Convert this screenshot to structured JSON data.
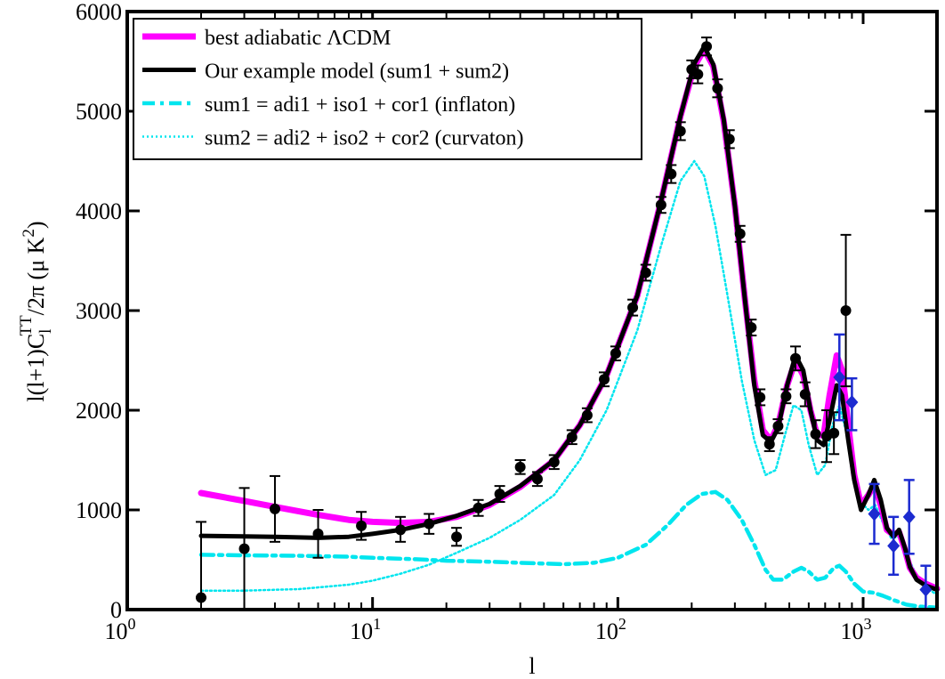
{
  "chart_data": {
    "type": "line",
    "title": "",
    "xlabel": "l",
    "ylabel": "l(l+1)C_l^TT/2π (μ K²)",
    "ylabel_parts": {
      "main": "l(l+1)C",
      "sub": "l",
      "sup": "TT",
      "rest": "/2π (μ K",
      "sup2": "2",
      "close": ")"
    },
    "x_scale": "log",
    "xlim": [
      1,
      2000
    ],
    "ylim": [
      0,
      6000
    ],
    "grid": false,
    "legend_position": "top-left",
    "x_ticks": [
      {
        "value": 1,
        "base": "10",
        "exp": "0"
      },
      {
        "value": 10,
        "base": "10",
        "exp": "1"
      },
      {
        "value": 100,
        "base": "10",
        "exp": "2"
      },
      {
        "value": 1000,
        "base": "10",
        "exp": "3"
      }
    ],
    "y_ticks": [
      {
        "value": 0,
        "label": "0"
      },
      {
        "value": 1000,
        "label": "1000"
      },
      {
        "value": 2000,
        "label": "2000"
      },
      {
        "value": 3000,
        "label": "3000"
      },
      {
        "value": 4000,
        "label": "4000"
      },
      {
        "value": 5000,
        "label": "5000"
      },
      {
        "value": 6000,
        "label": "6000"
      }
    ],
    "series": [
      {
        "name": "best adiabatic ΛCDM",
        "style": "solid",
        "color": "#ff00ff",
        "points": [
          [
            2,
            1170
          ],
          [
            3,
            1090
          ],
          [
            4,
            1030
          ],
          [
            6,
            950
          ],
          [
            8,
            900
          ],
          [
            10,
            880
          ],
          [
            13,
            870
          ],
          [
            17,
            880
          ],
          [
            22,
            930
          ],
          [
            30,
            1050
          ],
          [
            40,
            1230
          ],
          [
            55,
            1500
          ],
          [
            70,
            1850
          ],
          [
            90,
            2350
          ],
          [
            120,
            3150
          ],
          [
            150,
            4100
          ],
          [
            180,
            4950
          ],
          [
            205,
            5450
          ],
          [
            225,
            5620
          ],
          [
            245,
            5450
          ],
          [
            270,
            4900
          ],
          [
            300,
            4050
          ],
          [
            330,
            3100
          ],
          [
            360,
            2300
          ],
          [
            390,
            1800
          ],
          [
            420,
            1700
          ],
          [
            450,
            1850
          ],
          [
            490,
            2250
          ],
          [
            530,
            2500
          ],
          [
            570,
            2350
          ],
          [
            610,
            2000
          ],
          [
            650,
            1750
          ],
          [
            690,
            1750
          ],
          [
            730,
            2150
          ],
          [
            780,
            2550
          ],
          [
            820,
            2400
          ],
          [
            870,
            1850
          ],
          [
            920,
            1350
          ],
          [
            980,
            1050
          ],
          [
            1050,
            1150
          ],
          [
            1110,
            1250
          ],
          [
            1180,
            1050
          ],
          [
            1250,
            800
          ],
          [
            1330,
            750
          ],
          [
            1400,
            780
          ],
          [
            1480,
            600
          ],
          [
            1550,
            420
          ],
          [
            1650,
            320
          ],
          [
            1800,
            260
          ],
          [
            2000,
            210
          ]
        ]
      },
      {
        "name": "Our example model (sum1 + sum2)",
        "style": "solid",
        "color": "#000000",
        "points": [
          [
            2,
            740
          ],
          [
            3,
            735
          ],
          [
            4,
            730
          ],
          [
            6,
            720
          ],
          [
            8,
            730
          ],
          [
            10,
            760
          ],
          [
            13,
            800
          ],
          [
            17,
            860
          ],
          [
            22,
            940
          ],
          [
            30,
            1060
          ],
          [
            40,
            1240
          ],
          [
            55,
            1500
          ],
          [
            70,
            1850
          ],
          [
            90,
            2350
          ],
          [
            120,
            3150
          ],
          [
            150,
            4100
          ],
          [
            180,
            4950
          ],
          [
            205,
            5480
          ],
          [
            225,
            5650
          ],
          [
            245,
            5470
          ],
          [
            270,
            4920
          ],
          [
            300,
            4050
          ],
          [
            330,
            3100
          ],
          [
            360,
            2250
          ],
          [
            390,
            1750
          ],
          [
            420,
            1680
          ],
          [
            450,
            1820
          ],
          [
            490,
            2250
          ],
          [
            530,
            2550
          ],
          [
            570,
            2400
          ],
          [
            610,
            2000
          ],
          [
            650,
            1700
          ],
          [
            690,
            1650
          ],
          [
            730,
            1900
          ],
          [
            780,
            2250
          ],
          [
            820,
            2150
          ],
          [
            870,
            1700
          ],
          [
            920,
            1300
          ],
          [
            980,
            1000
          ],
          [
            1050,
            1150
          ],
          [
            1110,
            1300
          ],
          [
            1180,
            1100
          ],
          [
            1250,
            820
          ],
          [
            1330,
            730
          ],
          [
            1400,
            800
          ],
          [
            1480,
            620
          ],
          [
            1550,
            430
          ],
          [
            1650,
            300
          ],
          [
            1800,
            240
          ],
          [
            2000,
            200
          ]
        ]
      },
      {
        "name": "sum1 = adi1 + iso1 + cor1 (inflaton)",
        "style": "dash-dot",
        "color": "#00e5ee",
        "points": [
          [
            2,
            550
          ],
          [
            3,
            545
          ],
          [
            5,
            540
          ],
          [
            8,
            530
          ],
          [
            10,
            520
          ],
          [
            15,
            505
          ],
          [
            20,
            490
          ],
          [
            30,
            480
          ],
          [
            40,
            470
          ],
          [
            60,
            455
          ],
          [
            80,
            470
          ],
          [
            100,
            520
          ],
          [
            130,
            650
          ],
          [
            160,
            850
          ],
          [
            190,
            1050
          ],
          [
            220,
            1160
          ],
          [
            250,
            1180
          ],
          [
            280,
            1100
          ],
          [
            320,
            900
          ],
          [
            360,
            650
          ],
          [
            400,
            400
          ],
          [
            430,
            300
          ],
          [
            470,
            300
          ],
          [
            520,
            380
          ],
          [
            560,
            420
          ],
          [
            600,
            380
          ],
          [
            650,
            300
          ],
          [
            700,
            320
          ],
          [
            760,
            420
          ],
          [
            800,
            440
          ],
          [
            850,
            380
          ],
          [
            920,
            260
          ],
          [
            1000,
            180
          ],
          [
            1100,
            170
          ],
          [
            1200,
            140
          ],
          [
            1350,
            90
          ],
          [
            1500,
            50
          ],
          [
            1700,
            30
          ],
          [
            2000,
            20
          ]
        ]
      },
      {
        "name": "sum2 = adi2 + iso2 + cor2 (curvaton)",
        "style": "dotted",
        "color": "#00e5ee",
        "points": [
          [
            2,
            190
          ],
          [
            3,
            190
          ],
          [
            5,
            205
          ],
          [
            8,
            250
          ],
          [
            10,
            290
          ],
          [
            13,
            360
          ],
          [
            17,
            450
          ],
          [
            22,
            570
          ],
          [
            30,
            720
          ],
          [
            40,
            900
          ],
          [
            55,
            1150
          ],
          [
            70,
            1500
          ],
          [
            90,
            2000
          ],
          [
            120,
            2800
          ],
          [
            150,
            3650
          ],
          [
            180,
            4300
          ],
          [
            205,
            4500
          ],
          [
            225,
            4350
          ],
          [
            250,
            3850
          ],
          [
            280,
            3150
          ],
          [
            320,
            2300
          ],
          [
            360,
            1700
          ],
          [
            400,
            1350
          ],
          [
            440,
            1400
          ],
          [
            480,
            1750
          ],
          [
            520,
            2050
          ],
          [
            560,
            2000
          ],
          [
            600,
            1650
          ],
          [
            650,
            1350
          ],
          [
            700,
            1450
          ],
          [
            750,
            1850
          ],
          [
            800,
            2050
          ],
          [
            850,
            1800
          ],
          [
            900,
            1450
          ],
          [
            960,
            1100
          ],
          [
            1050,
            1000
          ],
          [
            1120,
            1050
          ],
          [
            1200,
            880
          ],
          [
            1300,
            720
          ],
          [
            1400,
            730
          ],
          [
            1500,
            560
          ],
          [
            1650,
            340
          ],
          [
            1800,
            220
          ],
          [
            2000,
            150
          ]
        ]
      }
    ],
    "data_black": [
      {
        "x": 2,
        "y": 120,
        "err": [
          120,
          880
        ]
      },
      {
        "x": 3,
        "y": 610,
        "err": [
          0,
          1220
        ]
      },
      {
        "x": 4,
        "y": 1010,
        "err": [
          680,
          1340
        ]
      },
      {
        "x": 6,
        "y": 760,
        "err": [
          520,
          1000
        ]
      },
      {
        "x": 9,
        "y": 840,
        "err": [
          700,
          980
        ]
      },
      {
        "x": 13,
        "y": 800,
        "err": [
          680,
          930
        ]
      },
      {
        "x": 17,
        "y": 860,
        "err": [
          760,
          960
        ]
      },
      {
        "x": 22,
        "y": 730,
        "err": [
          640,
          820
        ]
      },
      {
        "x": 27,
        "y": 1020,
        "err": [
          940,
          1100
        ]
      },
      {
        "x": 33,
        "y": 1160,
        "err": [
          1080,
          1240
        ]
      },
      {
        "x": 40,
        "y": 1430,
        "err": [
          1360,
          1500
        ]
      },
      {
        "x": 47,
        "y": 1310,
        "err": [
          1240,
          1380
        ]
      },
      {
        "x": 55,
        "y": 1480,
        "err": [
          1410,
          1550
        ]
      },
      {
        "x": 65,
        "y": 1730,
        "err": [
          1660,
          1800
        ]
      },
      {
        "x": 75,
        "y": 1950,
        "err": [
          1880,
          2020
        ]
      },
      {
        "x": 88,
        "y": 2310,
        "err": [
          2240,
          2380
        ]
      },
      {
        "x": 98,
        "y": 2570,
        "err": [
          2500,
          2640
        ]
      },
      {
        "x": 115,
        "y": 3030,
        "err": [
          2950,
          3110
        ]
      },
      {
        "x": 130,
        "y": 3380,
        "err": [
          3300,
          3460
        ]
      },
      {
        "x": 150,
        "y": 4060,
        "err": [
          3980,
          4140
        ]
      },
      {
        "x": 165,
        "y": 4370,
        "err": [
          4280,
          4460
        ]
      },
      {
        "x": 180,
        "y": 4800,
        "err": [
          4710,
          4890
        ]
      },
      {
        "x": 200,
        "y": 5420,
        "err": [
          5330,
          5510
        ]
      },
      {
        "x": 212,
        "y": 5370,
        "err": [
          5280,
          5460
        ]
      },
      {
        "x": 230,
        "y": 5650,
        "err": [
          5560,
          5740
        ]
      },
      {
        "x": 255,
        "y": 5230,
        "err": [
          5140,
          5320
        ]
      },
      {
        "x": 285,
        "y": 4720,
        "err": [
          4630,
          4810
        ]
      },
      {
        "x": 315,
        "y": 3770,
        "err": [
          3690,
          3850
        ]
      },
      {
        "x": 350,
        "y": 2830,
        "err": [
          2750,
          2910
        ]
      },
      {
        "x": 380,
        "y": 2130,
        "err": [
          2050,
          2210
        ]
      },
      {
        "x": 415,
        "y": 1660,
        "err": [
          1590,
          1730
        ]
      },
      {
        "x": 450,
        "y": 1840,
        "err": [
          1770,
          1910
        ]
      },
      {
        "x": 485,
        "y": 2140,
        "err": [
          2070,
          2210
        ]
      },
      {
        "x": 530,
        "y": 2520,
        "err": [
          2400,
          2640
        ]
      },
      {
        "x": 580,
        "y": 2160,
        "err": [
          2040,
          2280
        ]
      },
      {
        "x": 640,
        "y": 1760,
        "err": [
          1620,
          1900
        ]
      },
      {
        "x": 710,
        "y": 1740,
        "err": [
          1480,
          2000
        ]
      },
      {
        "x": 760,
        "y": 1770,
        "err": [
          1560,
          1980
        ]
      },
      {
        "x": 850,
        "y": 3000,
        "err": [
          2240,
          3760
        ]
      }
    ],
    "data_blue": [
      {
        "x": 800,
        "y": 2330,
        "err": [
          1900,
          2760
        ]
      },
      {
        "x": 900,
        "y": 2080,
        "err": [
          1800,
          2320
        ]
      },
      {
        "x": 1110,
        "y": 960,
        "err": [
          660,
          1260
        ]
      },
      {
        "x": 1330,
        "y": 640,
        "err": [
          350,
          930
        ]
      },
      {
        "x": 1540,
        "y": 930,
        "err": [
          560,
          1300
        ]
      },
      {
        "x": 1800,
        "y": 200,
        "err": [
          0,
          440
        ]
      }
    ]
  }
}
